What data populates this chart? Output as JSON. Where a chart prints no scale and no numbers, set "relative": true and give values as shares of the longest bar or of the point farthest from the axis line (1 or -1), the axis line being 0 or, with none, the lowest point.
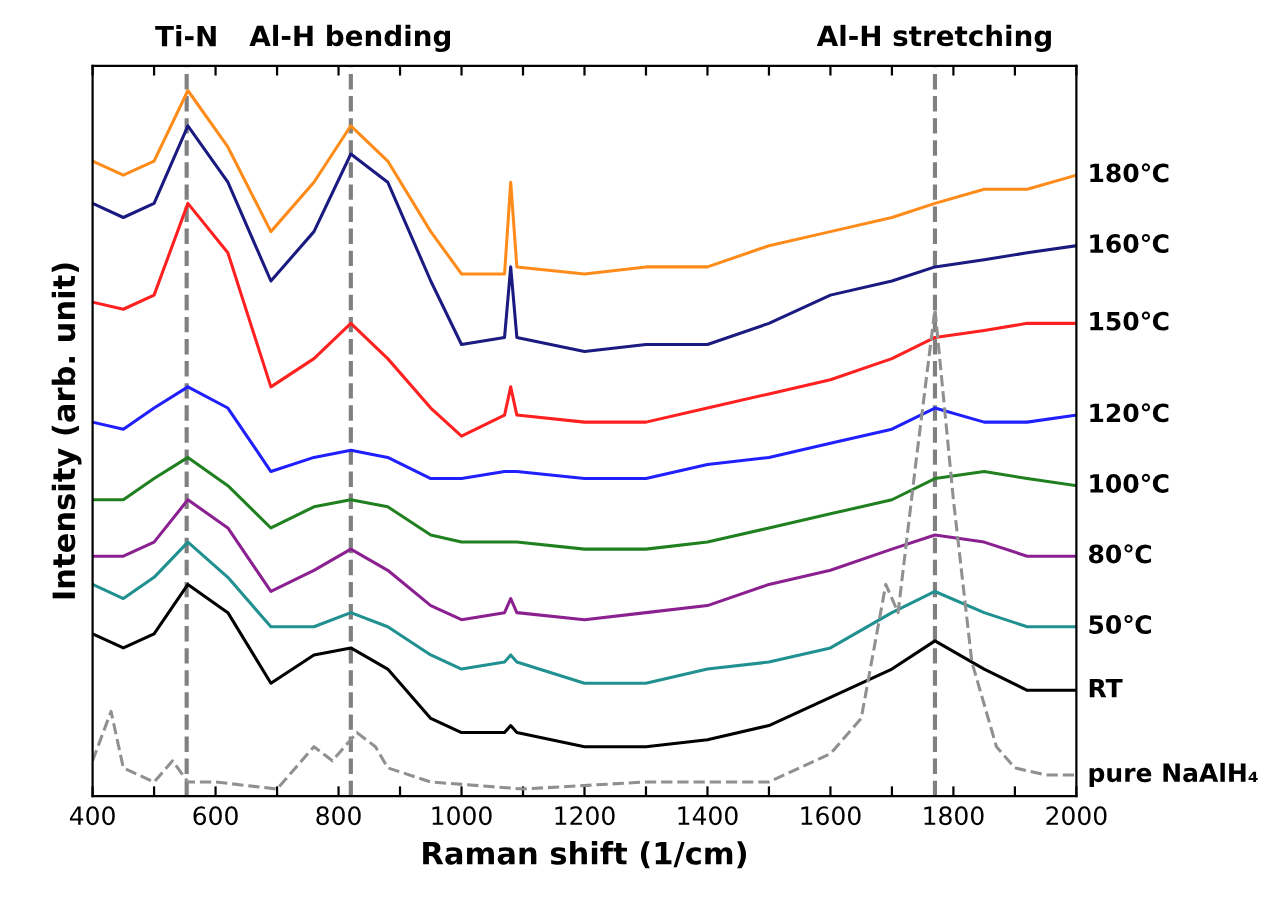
{
  "chart_data": {
    "type": "line",
    "relative": true,
    "xlabel": "Raman shift (1/cm)",
    "ylabel": "Intensity (arb. unit)",
    "x": [
      400,
      450,
      500,
      555,
      620,
      690,
      760,
      820,
      880,
      950,
      1000,
      1070,
      1080,
      1090,
      1200,
      1300,
      1400,
      1500,
      1600,
      1700,
      1770,
      1850,
      1920,
      2000
    ],
    "xlim": [
      400,
      2000
    ],
    "xticks": [
      400,
      {
        "value": 500,
        "label": null
      },
      600,
      {
        "value": 700,
        "label": null
      },
      800,
      {
        "value": 900,
        "label": null
      },
      1000,
      {
        "value": 1100,
        "label": null
      },
      1200,
      {
        "value": 1300,
        "label": null
      },
      1400,
      {
        "value": 1500,
        "label": null
      },
      1600,
      {
        "value": 1700,
        "label": null
      },
      1800,
      {
        "value": 1900,
        "label": null
      },
      2000
    ],
    "grid": false,
    "legend": false,
    "marker": "none",
    "line_style": "solid",
    "ref_lines": [
      {
        "axis": "x",
        "value": 553,
        "label": "Ti-N",
        "color": "#808080",
        "line_style": "dashed"
      },
      {
        "axis": "x",
        "value": 820,
        "label": "Al-H bending",
        "color": "#808080",
        "line_style": "dashed"
      },
      {
        "axis": "x",
        "value": 1770,
        "label": "Al-H stretching",
        "color": "#808080",
        "line_style": "dashed"
      }
    ],
    "series": [
      {
        "name": "180℃",
        "color": "#ff8c1a",
        "values": [
          0.9,
          0.88,
          0.9,
          1.0,
          0.92,
          0.8,
          0.87,
          0.95,
          0.9,
          0.8,
          0.74,
          0.74,
          0.87,
          0.75,
          0.74,
          0.75,
          0.75,
          0.78,
          0.8,
          0.82,
          0.84,
          0.86,
          0.86,
          0.88
        ]
      },
      {
        "name": "160℃",
        "color": "#1a1a80",
        "values": [
          0.84,
          0.82,
          0.84,
          0.95,
          0.87,
          0.73,
          0.8,
          0.91,
          0.87,
          0.73,
          0.64,
          0.65,
          0.75,
          0.65,
          0.63,
          0.64,
          0.64,
          0.67,
          0.71,
          0.73,
          0.75,
          0.76,
          0.77,
          0.78
        ]
      },
      {
        "name": "150℃",
        "color": "#ff2020",
        "values": [
          0.7,
          0.69,
          0.71,
          0.84,
          0.77,
          0.58,
          0.62,
          0.67,
          0.62,
          0.55,
          0.51,
          0.54,
          0.58,
          0.54,
          0.53,
          0.53,
          0.55,
          0.57,
          0.59,
          0.62,
          0.65,
          0.66,
          0.67,
          0.67
        ]
      },
      {
        "name": "120℃",
        "color": "#2020ff",
        "values": [
          0.53,
          0.52,
          0.55,
          0.58,
          0.55,
          0.46,
          0.48,
          0.49,
          0.48,
          0.45,
          0.45,
          0.46,
          0.46,
          0.46,
          0.45,
          0.45,
          0.47,
          0.48,
          0.5,
          0.52,
          0.55,
          0.53,
          0.53,
          0.54
        ]
      },
      {
        "name": "100℃",
        "color": "#208020",
        "values": [
          0.42,
          0.42,
          0.45,
          0.48,
          0.44,
          0.38,
          0.41,
          0.42,
          0.41,
          0.37,
          0.36,
          0.36,
          0.36,
          0.36,
          0.35,
          0.35,
          0.36,
          0.38,
          0.4,
          0.42,
          0.45,
          0.46,
          0.45,
          0.44
        ]
      },
      {
        "name": "80℃",
        "color": "#8b2090",
        "values": [
          0.34,
          0.34,
          0.36,
          0.42,
          0.38,
          0.29,
          0.32,
          0.35,
          0.32,
          0.27,
          0.25,
          0.26,
          0.28,
          0.26,
          0.25,
          0.26,
          0.27,
          0.3,
          0.32,
          0.35,
          0.37,
          0.36,
          0.34,
          0.34
        ]
      },
      {
        "name": "50℃",
        "color": "#209090",
        "values": [
          0.3,
          0.28,
          0.31,
          0.36,
          0.31,
          0.24,
          0.24,
          0.26,
          0.24,
          0.2,
          0.18,
          0.19,
          0.2,
          0.19,
          0.16,
          0.16,
          0.18,
          0.19,
          0.21,
          0.26,
          0.29,
          0.26,
          0.24,
          0.24
        ]
      },
      {
        "name": "RT",
        "color": "#000000",
        "values": [
          0.23,
          0.21,
          0.23,
          0.3,
          0.26,
          0.16,
          0.2,
          0.21,
          0.18,
          0.11,
          0.09,
          0.09,
          0.1,
          0.09,
          0.07,
          0.07,
          0.08,
          0.1,
          0.14,
          0.18,
          0.22,
          0.18,
          0.15,
          0.15
        ]
      },
      {
        "name": "pure NaAlH₄",
        "color": "#909090",
        "line_style": "dashed",
        "x": [
          400,
          430,
          450,
          500,
          530,
          555,
          600,
          700,
          760,
          790,
          830,
          860,
          880,
          950,
          1100,
          1300,
          1500,
          1600,
          1650,
          1690,
          1710,
          1740,
          1770,
          1800,
          1830,
          1870,
          1900,
          1950,
          2000
        ],
        "values": [
          0.05,
          0.12,
          0.04,
          0.02,
          0.05,
          0.02,
          0.02,
          0.01,
          0.07,
          0.05,
          0.09,
          0.07,
          0.04,
          0.02,
          0.01,
          0.02,
          0.02,
          0.06,
          0.11,
          0.3,
          0.26,
          0.48,
          0.69,
          0.42,
          0.19,
          0.07,
          0.04,
          0.03,
          0.03
        ]
      }
    ]
  }
}
